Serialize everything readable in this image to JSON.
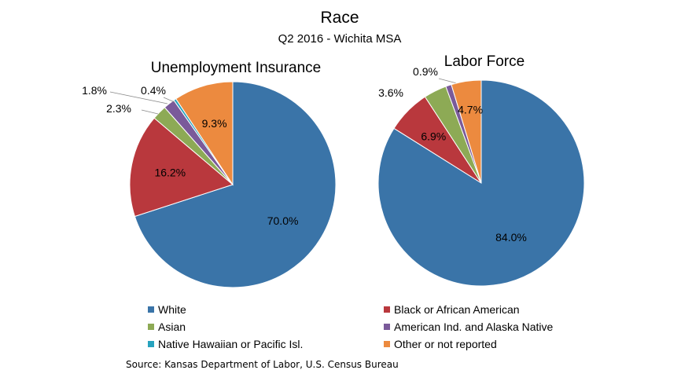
{
  "title": "Race",
  "subtitle": "Q2 2016 - Wichita MSA",
  "source": "Source:  Kansas Department of Labor, U.S. Census Bureau",
  "chart_data": {
    "type": "pie",
    "legend_position": "bottom",
    "categories": [
      {
        "name": "White",
        "color": "#3A74A8"
      },
      {
        "name": "Black or African American",
        "color": "#B9383D"
      },
      {
        "name": "Asian",
        "color": "#8DAA55"
      },
      {
        "name": "American Ind. and Alaska Native",
        "color": "#7A5A9A"
      },
      {
        "name": "Native Hawaiian or Pacific Isl.",
        "color": "#27A3BE"
      },
      {
        "name": "Other or not reported",
        "color": "#EC8A3F"
      }
    ],
    "pies": [
      {
        "title": "Unemployment Insurance",
        "values": [
          70.0,
          16.2,
          2.3,
          1.8,
          0.4,
          9.3
        ],
        "labels": [
          "70.0%",
          "16.2%",
          "2.3%",
          "1.8%",
          "0.4%",
          "9.3%"
        ]
      },
      {
        "title": "Labor Force",
        "values": [
          84.0,
          6.9,
          3.6,
          0.9,
          0.0,
          4.7
        ],
        "labels": [
          "84.0%",
          "6.9%",
          "3.6%",
          "0.9%",
          "",
          "4.7%"
        ]
      }
    ]
  }
}
